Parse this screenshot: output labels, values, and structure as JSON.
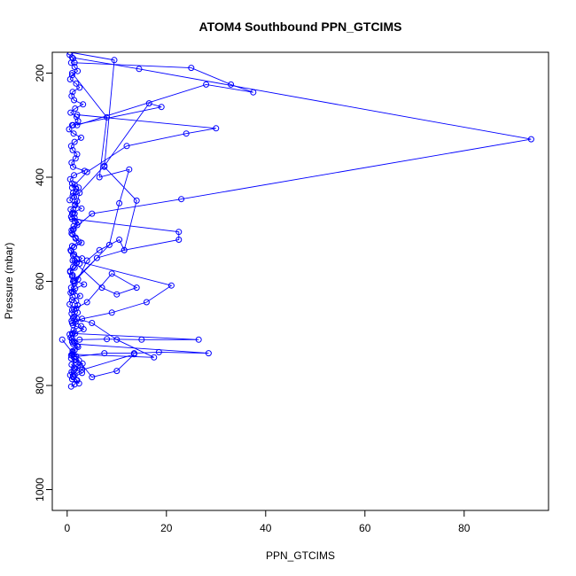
{
  "chart_data": {
    "type": "line",
    "title": "ATOM4 Southbound PPN_GTCIMS",
    "xlabel": "PPN_GTCIMS",
    "ylabel": "Pressure (mbar)",
    "xlim": [
      -3,
      97
    ],
    "ylim": [
      1040,
      160
    ],
    "y_reversed": true,
    "x_ticks": [
      0,
      20,
      40,
      60,
      80
    ],
    "x_tick_labels": [
      "0",
      "20",
      "40",
      "60",
      "80"
    ],
    "y_ticks": [
      200,
      400,
      600,
      800,
      1000
    ],
    "y_tick_labels": [
      "200",
      "400",
      "600",
      "800",
      "1000"
    ],
    "grid": false,
    "legend": "none",
    "series_color": "#0000ff",
    "marker": "open-circle",
    "series": [
      {
        "x": [
          0.5,
          1.2,
          0.8,
          1.5,
          2.1,
          1.0,
          0.6,
          1.8,
          2.5,
          1.1,
          0.9,
          1.4,
          3.2,
          1.6,
          0.7,
          1.9,
          2.2,
          1.0,
          0.4,
          1.3,
          2.8,
          1.5,
          0.8,
          1.1,
          2.0,
          1.7,
          0.9,
          1.2,
          3.5,
          1.4,
          0.6,
          1.0,
          2.3,
          1.8,
          1.1,
          0.5,
          1.6,
          2.9,
          1.2,
          0.8,
          1.5,
          2.0,
          1.3,
          0.9,
          1.7,
          2.4,
          1.0,
          0.7,
          1.4,
          3.0,
          1.9,
          1.2,
          0.6,
          1.1,
          2.2,
          1.5,
          0.8,
          1.3,
          2.6,
          1.0,
          0.5,
          1.8,
          2.1,
          1.4,
          0.9,
          1.2,
          3.3,
          1.6,
          0.7,
          1.0,
          2.0,
          1.5,
          1.1,
          0.8,
          1.7,
          2.7,
          1.3,
          0.6,
          1.0,
          2.4,
          1.9,
          1.2,
          0.9,
          1.4,
          3.1,
          1.6,
          0.8,
          1.1,
          2.2,
          1.5,
          1.0,
          0.5,
          1.3,
          2.8,
          1.7,
          1.2,
          0.9,
          1.4,
          2.1,
          1.8,
          1.1,
          0.7,
          1.6,
          3.4,
          1.3,
          1.0,
          0.6,
          1.5,
          2.5,
          1.9,
          1.2,
          0.8,
          1.4,
          2.9,
          1.7,
          1.1,
          0.9,
          1.3,
          2.3,
          1.5,
          1.0,
          0.7,
          1.6,
          2.0,
          1.4,
          1.2,
          1.8,
          1.5
        ],
        "y": [
          165,
          172,
          180,
          188,
          196,
          204,
          212,
          220,
          228,
          236,
          244,
          252,
          260,
          268,
          276,
          284,
          292,
          300,
          308,
          316,
          324,
          332,
          340,
          348,
          356,
          364,
          372,
          380,
          388,
          396,
          404,
          412,
          420,
          428,
          436,
          444,
          452,
          460,
          468,
          476,
          484,
          492,
          500,
          508,
          516,
          524,
          532,
          540,
          548,
          556,
          564,
          572,
          580,
          588,
          596,
          604,
          612,
          620,
          628,
          636,
          644,
          652,
          660,
          668,
          676,
          684,
          692,
          700,
          708,
          716,
          724,
          732,
          740,
          748,
          756,
          764,
          772,
          780,
          788,
          796,
          790,
          782,
          774,
          766,
          758,
          750,
          742,
          734,
          726,
          718,
          710,
          702,
          694,
          686,
          678,
          670,
          662,
          654,
          646,
          638,
          630,
          622,
          614,
          606,
          598,
          590,
          582,
          574,
          566,
          558,
          550,
          542,
          534,
          526,
          518,
          510,
          502,
          494,
          486,
          478,
          470,
          462,
          454,
          446,
          438,
          430,
          422,
          414
        ]
      },
      {
        "x": [
          0.8,
          1.5,
          2.0,
          1.2,
          3.0,
          1.6,
          0.9,
          2.4,
          1.8,
          1.1
        ],
        "y": [
          802,
          798,
          790,
          784,
          776,
          768,
          760,
          752,
          744,
          736
        ]
      },
      {
        "x": [
          1.0,
          14.5,
          93.5,
          23.0,
          5.0,
          1.2
        ],
        "y": [
          170,
          192,
          327,
          442,
          470,
          500
        ]
      },
      {
        "x": [
          1.5,
          25.0,
          33.0,
          37.5,
          28.0,
          2.0
        ],
        "y": [
          180,
          190,
          222,
          237,
          222,
          300
        ]
      },
      {
        "x": [
          2.0,
          30.0,
          24.0,
          12.0,
          4.0,
          1.0
        ],
        "y": [
          280,
          306,
          316,
          340,
          390,
          420
        ]
      },
      {
        "x": [
          1.2,
          19.0,
          16.5,
          7.5,
          2.5,
          1.5
        ],
        "y": [
          300,
          265,
          258,
          378,
          430,
          470
        ]
      },
      {
        "x": [
          1.0,
          22.5,
          22.5,
          11.5,
          6.0,
          1.2
        ],
        "y": [
          480,
          505,
          520,
          540,
          555,
          600
        ]
      },
      {
        "x": [
          1.5,
          21.0,
          16.0,
          9.0,
          3.0,
          1.0
        ],
        "y": [
          560,
          608,
          640,
          660,
          672,
          680
        ]
      },
      {
        "x": [
          1.0,
          26.5,
          15.0,
          8.0,
          2.5,
          1.3
        ],
        "y": [
          700,
          712,
          712,
          711,
          712,
          715
        ]
      },
      {
        "x": [
          1.2,
          28.5,
          18.5,
          13.5,
          7.5,
          1.5
        ],
        "y": [
          720,
          738,
          736,
          738,
          738,
          745
        ]
      },
      {
        "x": [
          1.0,
          17.5,
          10.0,
          5.0,
          2.0,
          1.1
        ],
        "y": [
          740,
          746,
          712,
          680,
          672,
          700
        ]
      },
      {
        "x": [
          0.6,
          9.5,
          7.5,
          14.0,
          11.5,
          10.5,
          6.5,
          4.0,
          1.0
        ],
        "y": [
          160,
          175,
          380,
          445,
          540,
          520,
          540,
          560,
          620
        ]
      },
      {
        "x": [
          1.0,
          8.0,
          6.5,
          12.5,
          10.5,
          8.5,
          1.5
        ],
        "y": [
          200,
          285,
          400,
          385,
          450,
          530,
          600
        ]
      },
      {
        "x": [
          1.1,
          7.0,
          10.0,
          14.0,
          9.0,
          4.0,
          1.0
        ],
        "y": [
          560,
          612,
          625,
          612,
          585,
          640,
          655
        ]
      },
      {
        "x": [
          -1.0,
          5.0,
          10.0,
          13.5,
          3.0,
          1.5
        ],
        "y": [
          712,
          784,
          772,
          740,
          770,
          780
        ]
      }
    ]
  }
}
